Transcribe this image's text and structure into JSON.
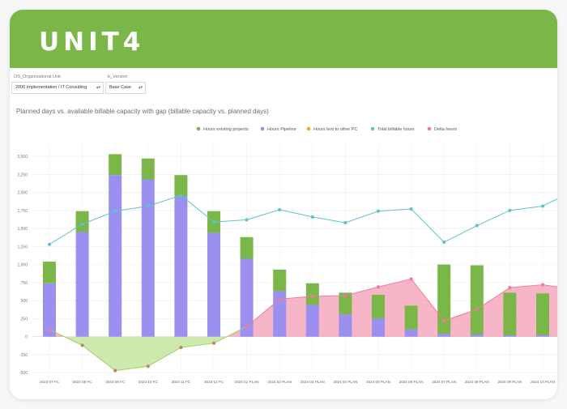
{
  "brand": {
    "logo": "UNIT4",
    "color": "#7ab648"
  },
  "filters": [
    {
      "label": "OS_Organizational Unit",
      "value": "2000 Implementation / IT Consulting"
    },
    {
      "label": "b_Version",
      "value": "Base Case"
    }
  ],
  "chart_data": {
    "type": "bar",
    "title": "Planned days vs. available billable capacity with gap (billable capacity vs. planned days)",
    "categories": [
      "2023 07 FC",
      "2023 08 FC",
      "2023 09 FC",
      "2023 10 FC",
      "2023 11 FC",
      "2023 12 FC",
      "2024 01 PLAN",
      "2024 02 PLAN",
      "2024 03 PLAN",
      "2024 04 PLAN",
      "2024 05 PLAN",
      "2024 06 PLAN",
      "2024 07 PLAN",
      "2024 08 PLAN",
      "2024 09 PLAN",
      "2024 10 PLAN"
    ],
    "y_ticks": [
      -500,
      -250,
      0,
      250,
      500,
      750,
      1000,
      1250,
      1500,
      1750,
      2000,
      2250,
      2500
    ],
    "y_tick_labels": [
      "-500",
      "-250",
      "0",
      "250",
      "500",
      "750",
      "1,000",
      "1,250",
      "1,500",
      "1,750",
      "2,000",
      "2,250",
      "2,500"
    ],
    "ylim": [
      -520,
      2680
    ],
    "grid": true,
    "legend_position": "top-right",
    "series": [
      {
        "name": "Hours existing projects",
        "kind": "bar",
        "color": "#7ab648",
        "values": [
          300,
          290,
          290,
          290,
          290,
          300,
          300,
          300,
          300,
          300,
          330,
          330,
          960,
          960,
          590,
          580
        ]
      },
      {
        "name": "Hours Pipeline",
        "kind": "bar",
        "color": "#9b8ff0",
        "values": [
          740,
          1450,
          2240,
          2180,
          1950,
          1440,
          1080,
          630,
          440,
          310,
          250,
          100,
          40,
          30,
          20,
          20
        ]
      },
      {
        "name": "Hours lent to other PC",
        "kind": "bar",
        "color": "#f5a623",
        "values": [
          0,
          0,
          0,
          0,
          0,
          0,
          0,
          0,
          0,
          0,
          0,
          0,
          0,
          0,
          0,
          0
        ]
      },
      {
        "name": "Total billable hours",
        "kind": "line",
        "color": "#5fc3c8",
        "values": [
          1280,
          1560,
          1740,
          1810,
          1960,
          1590,
          1620,
          1760,
          1660,
          1580,
          1740,
          1770,
          1310,
          1540,
          1750,
          1810
        ]
      },
      {
        "name": "Delta hours",
        "kind": "area",
        "color": "#f07a9a",
        "values": [
          100,
          -120,
          -470,
          -410,
          -150,
          -90,
          140,
          520,
          560,
          570,
          690,
          800,
          220,
          380,
          680,
          720
        ]
      }
    ]
  }
}
